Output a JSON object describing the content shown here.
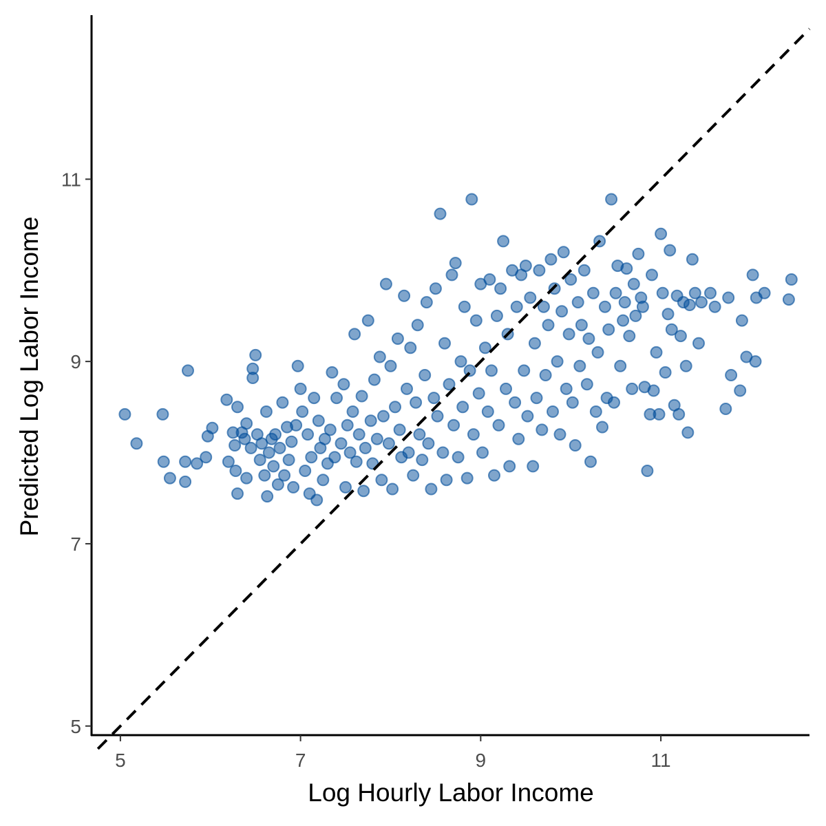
{
  "chart_data": {
    "type": "scatter",
    "title": "",
    "xlabel": "Log Hourly Labor Income",
    "ylabel": "Predicted Log Labor Income",
    "xlim": [
      4.68,
      12.65
    ],
    "ylim": [
      4.9,
      12.8
    ],
    "x_ticks": [
      5,
      7,
      9,
      11
    ],
    "y_ticks": [
      5,
      7,
      9,
      11
    ],
    "x_tick_labels": [
      "5",
      "7",
      "9",
      "11"
    ],
    "y_tick_labels": [
      "5",
      "7",
      "9",
      "11"
    ],
    "grid": false,
    "legend": "none",
    "point_color": "#004c99",
    "point_opacity": 0.5,
    "reference_line": {
      "type": "identity",
      "style": "dashed",
      "color": "#000000",
      "from": [
        4.75,
        4.75
      ],
      "to": [
        12.65,
        12.65
      ]
    },
    "series": [
      {
        "points": [
          [
            5.05,
            8.42
          ],
          [
            5.18,
            8.1
          ],
          [
            5.47,
            8.42
          ],
          [
            5.48,
            7.9
          ],
          [
            5.55,
            7.72
          ],
          [
            5.72,
            7.9
          ],
          [
            5.72,
            7.68
          ],
          [
            5.75,
            8.9
          ],
          [
            5.85,
            7.88
          ],
          [
            5.95,
            7.95
          ],
          [
            5.97,
            8.18
          ],
          [
            6.02,
            8.27
          ],
          [
            6.18,
            8.58
          ],
          [
            6.2,
            7.9
          ],
          [
            6.25,
            8.22
          ],
          [
            6.27,
            8.08
          ],
          [
            6.28,
            7.8
          ],
          [
            6.3,
            8.5
          ],
          [
            6.3,
            7.55
          ],
          [
            6.35,
            8.22
          ],
          [
            6.38,
            8.15
          ],
          [
            6.4,
            7.72
          ],
          [
            6.4,
            8.32
          ],
          [
            6.45,
            8.05
          ],
          [
            6.47,
            8.92
          ],
          [
            6.47,
            8.82
          ],
          [
            6.5,
            9.07
          ],
          [
            6.52,
            8.2
          ],
          [
            6.55,
            7.92
          ],
          [
            6.57,
            8.1
          ],
          [
            6.6,
            7.75
          ],
          [
            6.62,
            8.45
          ],
          [
            6.63,
            7.52
          ],
          [
            6.65,
            8.0
          ],
          [
            6.68,
            8.15
          ],
          [
            6.7,
            7.85
          ],
          [
            6.72,
            8.2
          ],
          [
            6.75,
            7.65
          ],
          [
            6.77,
            8.05
          ],
          [
            6.8,
            8.55
          ],
          [
            6.82,
            7.75
          ],
          [
            6.85,
            8.28
          ],
          [
            6.87,
            7.92
          ],
          [
            6.9,
            8.12
          ],
          [
            6.92,
            7.62
          ],
          [
            6.95,
            8.3
          ],
          [
            6.97,
            8.95
          ],
          [
            7.0,
            8.7
          ],
          [
            7.02,
            8.45
          ],
          [
            7.05,
            7.8
          ],
          [
            7.08,
            8.2
          ],
          [
            7.1,
            7.55
          ],
          [
            7.12,
            7.95
          ],
          [
            7.15,
            8.6
          ],
          [
            7.18,
            7.48
          ],
          [
            7.2,
            8.35
          ],
          [
            7.22,
            8.05
          ],
          [
            7.25,
            7.7
          ],
          [
            7.27,
            8.15
          ],
          [
            7.3,
            7.88
          ],
          [
            7.33,
            8.25
          ],
          [
            7.35,
            8.88
          ],
          [
            7.38,
            7.95
          ],
          [
            7.4,
            8.6
          ],
          [
            7.45,
            8.1
          ],
          [
            7.48,
            8.75
          ],
          [
            7.5,
            7.62
          ],
          [
            7.52,
            8.3
          ],
          [
            7.55,
            8.0
          ],
          [
            7.58,
            8.45
          ],
          [
            7.6,
            9.3
          ],
          [
            7.62,
            7.9
          ],
          [
            7.65,
            8.2
          ],
          [
            7.68,
            8.62
          ],
          [
            7.7,
            7.58
          ],
          [
            7.72,
            8.05
          ],
          [
            7.75,
            9.45
          ],
          [
            7.78,
            8.35
          ],
          [
            7.8,
            7.88
          ],
          [
            7.82,
            8.8
          ],
          [
            7.85,
            8.15
          ],
          [
            7.88,
            9.05
          ],
          [
            7.9,
            7.7
          ],
          [
            7.92,
            8.4
          ],
          [
            7.95,
            9.85
          ],
          [
            7.98,
            8.1
          ],
          [
            8.0,
            8.95
          ],
          [
            8.02,
            7.6
          ],
          [
            8.05,
            8.5
          ],
          [
            8.08,
            9.25
          ],
          [
            8.1,
            8.25
          ],
          [
            8.12,
            7.95
          ],
          [
            8.15,
            9.72
          ],
          [
            8.18,
            8.7
          ],
          [
            8.2,
            8.0
          ],
          [
            8.22,
            9.15
          ],
          [
            8.25,
            7.75
          ],
          [
            8.28,
            8.55
          ],
          [
            8.3,
            9.4
          ],
          [
            8.32,
            8.2
          ],
          [
            8.35,
            7.92
          ],
          [
            8.38,
            8.85
          ],
          [
            8.4,
            9.65
          ],
          [
            8.42,
            8.1
          ],
          [
            8.45,
            7.6
          ],
          [
            8.48,
            8.6
          ],
          [
            8.5,
            9.8
          ],
          [
            8.52,
            8.4
          ],
          [
            8.55,
            10.62
          ],
          [
            8.58,
            8.0
          ],
          [
            8.6,
            9.2
          ],
          [
            8.62,
            7.7
          ],
          [
            8.65,
            8.75
          ],
          [
            8.68,
            9.95
          ],
          [
            8.7,
            8.3
          ],
          [
            8.72,
            10.08
          ],
          [
            8.75,
            7.95
          ],
          [
            8.78,
            9.0
          ],
          [
            8.8,
            8.5
          ],
          [
            8.82,
            9.6
          ],
          [
            8.85,
            7.72
          ],
          [
            8.88,
            8.9
          ],
          [
            8.9,
            10.78
          ],
          [
            8.92,
            8.2
          ],
          [
            8.95,
            9.45
          ],
          [
            8.98,
            8.65
          ],
          [
            9.0,
            9.85
          ],
          [
            9.02,
            8.0
          ],
          [
            9.05,
            9.15
          ],
          [
            9.08,
            8.45
          ],
          [
            9.1,
            9.9
          ],
          [
            9.12,
            8.9
          ],
          [
            9.15,
            7.75
          ],
          [
            9.18,
            9.5
          ],
          [
            9.2,
            8.3
          ],
          [
            9.22,
            9.8
          ],
          [
            9.25,
            10.32
          ],
          [
            9.28,
            8.7
          ],
          [
            9.3,
            9.3
          ],
          [
            9.32,
            7.85
          ],
          [
            9.35,
            10.0
          ],
          [
            9.38,
            8.55
          ],
          [
            9.4,
            9.6
          ],
          [
            9.42,
            8.15
          ],
          [
            9.45,
            9.95
          ],
          [
            9.48,
            8.9
          ],
          [
            9.5,
            10.05
          ],
          [
            9.52,
            8.4
          ],
          [
            9.55,
            9.7
          ],
          [
            9.58,
            7.85
          ],
          [
            9.6,
            9.2
          ],
          [
            9.62,
            8.6
          ],
          [
            9.65,
            10.0
          ],
          [
            9.68,
            8.25
          ],
          [
            9.7,
            9.6
          ],
          [
            9.72,
            8.85
          ],
          [
            9.75,
            9.4
          ],
          [
            9.78,
            10.12
          ],
          [
            9.8,
            8.45
          ],
          [
            9.82,
            9.8
          ],
          [
            9.85,
            9.0
          ],
          [
            9.88,
            8.2
          ],
          [
            9.9,
            9.55
          ],
          [
            9.92,
            10.2
          ],
          [
            9.95,
            8.7
          ],
          [
            9.98,
            9.3
          ],
          [
            10.0,
            9.9
          ],
          [
            10.02,
            8.55
          ],
          [
            10.05,
            8.08
          ],
          [
            10.08,
            9.65
          ],
          [
            10.1,
            8.95
          ],
          [
            10.12,
            9.4
          ],
          [
            10.15,
            10.0
          ],
          [
            10.18,
            8.75
          ],
          [
            10.2,
            9.25
          ],
          [
            10.22,
            7.9
          ],
          [
            10.25,
            9.75
          ],
          [
            10.28,
            8.45
          ],
          [
            10.3,
            9.1
          ],
          [
            10.32,
            10.32
          ],
          [
            10.35,
            8.28
          ],
          [
            10.38,
            9.6
          ],
          [
            10.4,
            8.6
          ],
          [
            10.42,
            9.35
          ],
          [
            10.45,
            10.78
          ],
          [
            10.48,
            8.55
          ],
          [
            10.5,
            9.75
          ],
          [
            10.52,
            10.05
          ],
          [
            10.55,
            8.95
          ],
          [
            10.58,
            9.45
          ],
          [
            10.6,
            9.65
          ],
          [
            10.62,
            10.02
          ],
          [
            10.65,
            9.28
          ],
          [
            10.68,
            8.7
          ],
          [
            10.7,
            9.85
          ],
          [
            10.72,
            9.5
          ],
          [
            10.75,
            10.18
          ],
          [
            10.78,
            9.7
          ],
          [
            10.8,
            9.6
          ],
          [
            10.82,
            8.72
          ],
          [
            10.85,
            7.8
          ],
          [
            10.88,
            8.42
          ],
          [
            10.9,
            9.95
          ],
          [
            10.92,
            8.68
          ],
          [
            10.95,
            9.1
          ],
          [
            10.98,
            8.42
          ],
          [
            11.0,
            10.4
          ],
          [
            11.02,
            9.75
          ],
          [
            11.05,
            8.88
          ],
          [
            11.08,
            9.52
          ],
          [
            11.1,
            10.22
          ],
          [
            11.12,
            9.35
          ],
          [
            11.15,
            8.52
          ],
          [
            11.18,
            9.72
          ],
          [
            11.2,
            8.42
          ],
          [
            11.22,
            9.28
          ],
          [
            11.25,
            9.65
          ],
          [
            11.28,
            8.95
          ],
          [
            11.3,
            8.22
          ],
          [
            11.32,
            9.62
          ],
          [
            11.35,
            10.12
          ],
          [
            11.38,
            9.75
          ],
          [
            11.42,
            9.2
          ],
          [
            11.45,
            9.65
          ],
          [
            11.55,
            9.75
          ],
          [
            11.6,
            9.6
          ],
          [
            11.72,
            8.48
          ],
          [
            11.75,
            9.7
          ],
          [
            11.78,
            8.85
          ],
          [
            11.88,
            8.68
          ],
          [
            11.9,
            9.45
          ],
          [
            11.95,
            9.05
          ],
          [
            12.02,
            9.95
          ],
          [
            12.05,
            9.0
          ],
          [
            12.06,
            9.7
          ],
          [
            12.15,
            9.75
          ],
          [
            12.42,
            9.68
          ],
          [
            12.45,
            9.9
          ]
        ]
      }
    ]
  }
}
